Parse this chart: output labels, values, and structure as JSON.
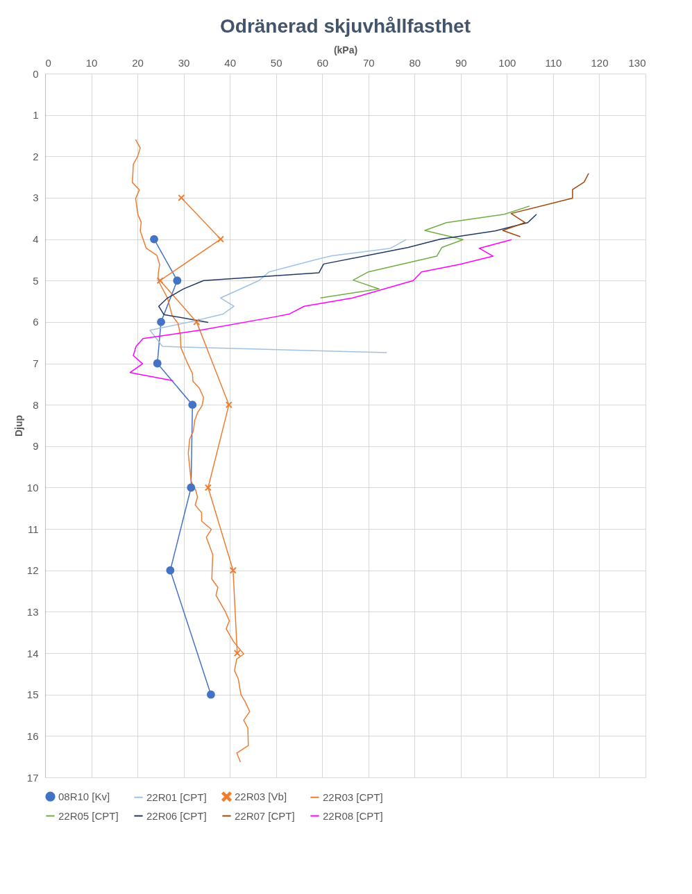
{
  "chart_data": {
    "type": "line",
    "title": "Odränerad skjuvhållfasthet",
    "xlabel": "(kPa)",
    "ylabel": "Djup",
    "xlim": [
      0,
      130
    ],
    "xticks": [
      0,
      10,
      20,
      30,
      40,
      50,
      60,
      70,
      80,
      90,
      100,
      110,
      120,
      130
    ],
    "ylim": [
      17,
      0
    ],
    "yticks": [
      0,
      1,
      2,
      3,
      4,
      5,
      6,
      7,
      8,
      9,
      10,
      11,
      12,
      13,
      14,
      15,
      16,
      17
    ],
    "grid": true,
    "legend": "bottom",
    "series": [
      {
        "name": "08R10 [Kv]",
        "color": "#4472c4",
        "marker": "circle",
        "x": [
          23.6,
          28.6,
          25.1,
          24.3,
          31.9,
          31.6,
          27.1,
          35.9
        ],
        "values": [
          4,
          5,
          6,
          7,
          8,
          10,
          12,
          15
        ]
      },
      {
        "name": "22R01 [CPT]",
        "color": "#9dc3e6",
        "marker": "none",
        "x": [
          78.2,
          74.8,
          62.1,
          59.1,
          48.5,
          46.3,
          38.0,
          40.9,
          38.5,
          32.6,
          22.7,
          25.4,
          66.6,
          74.0
        ],
        "values": [
          4.01,
          4.22,
          4.4,
          4.48,
          4.79,
          5.0,
          5.42,
          5.62,
          5.81,
          5.97,
          6.2,
          6.59,
          6.72,
          6.74
        ]
      },
      {
        "name": "22R03 [Vb]",
        "color": "#ed7d31",
        "marker": "cross",
        "x": [
          29.5,
          38.0,
          24.9,
          32.8,
          39.8,
          35.3,
          40.7,
          41.6
        ],
        "values": [
          3,
          4,
          5,
          6,
          8,
          10,
          12,
          14
        ]
      },
      {
        "name": "22R03 [CPT]",
        "color": "#ed7d31",
        "marker": "none",
        "x": [
          19.6,
          20.6,
          20.0,
          19.1,
          18.9,
          20.4,
          19.6,
          20.1,
          20.8,
          20.6,
          21.9,
          24.2,
          24.8,
          24.5,
          24.5,
          26.5,
          27.5,
          28.8,
          29.3,
          29.4,
          30.8,
          31.9,
          32.0,
          33.4,
          34.3,
          34.0,
          33.0,
          32.4,
          32.1,
          31.3,
          31.0,
          31.3,
          31.6,
          32.6,
          33.0,
          32.5,
          33.9,
          33.9,
          36.0,
          34.9,
          36.3,
          36.1,
          37.4,
          37.0,
          39.0,
          39.9,
          39.2,
          40.8,
          43.0,
          41.5,
          41.0,
          41.8,
          42.4,
          43.3,
          44.3,
          43.0,
          43.9,
          44.0,
          41.5,
          42.3
        ],
        "values": [
          1.59,
          1.8,
          2.01,
          2.19,
          2.63,
          2.81,
          3.02,
          3.41,
          3.59,
          3.8,
          4.22,
          4.39,
          4.61,
          4.83,
          5.0,
          5.42,
          5.84,
          6.04,
          6.32,
          6.62,
          6.99,
          7.24,
          7.43,
          7.6,
          7.82,
          8.02,
          8.19,
          8.38,
          8.63,
          8.83,
          9.17,
          9.5,
          9.84,
          10.06,
          10.23,
          10.42,
          10.61,
          10.81,
          11.01,
          11.2,
          11.62,
          12.21,
          12.41,
          12.6,
          12.99,
          13.22,
          13.41,
          13.72,
          14.02,
          14.14,
          14.42,
          14.61,
          15.0,
          15.17,
          15.41,
          15.62,
          15.81,
          16.23,
          16.41,
          16.63
        ]
      },
      {
        "name": "22R05 [CPT]",
        "color": "#70ad47",
        "marker": "none",
        "x": [
          104.9,
          99.4,
          86.9,
          82.2,
          90.5,
          85.9,
          84.8,
          70.0,
          66.7,
          72.3,
          59.6
        ],
        "values": [
          3.2,
          3.4,
          3.6,
          3.79,
          4.01,
          4.2,
          4.41,
          4.79,
          4.99,
          5.2,
          5.42
        ]
      },
      {
        "name": "22R06 [CPT]",
        "color": "#203864",
        "marker": "none",
        "x": [
          106.4,
          104.5,
          97.4,
          85.6,
          78.6,
          60.3,
          59.3,
          34.3,
          30.0,
          26.5,
          24.6,
          25.7,
          35.3
        ],
        "values": [
          3.4,
          3.6,
          3.8,
          4.0,
          4.2,
          4.6,
          4.81,
          5.0,
          5.2,
          5.42,
          5.62,
          5.82,
          6.01
        ]
      },
      {
        "name": "22R07 [CPT]",
        "color": "#9e480e",
        "marker": "none",
        "x": [
          117.7,
          116.7,
          114.2,
          114.2,
          100.9,
          103.9,
          99.1,
          102.9
        ],
        "values": [
          2.41,
          2.62,
          2.8,
          3.01,
          3.38,
          3.6,
          3.79,
          3.94
        ]
      },
      {
        "name": "22R08 [CPT]",
        "color": "#ff00ff",
        "marker": "none",
        "x": [
          101.0,
          94.0,
          97.0,
          89.7,
          81.5,
          79.7,
          66.6,
          56.1,
          52.8,
          50.0,
          34.0,
          21.2,
          19.7,
          19.1,
          21.1,
          18.4,
          27.7
        ],
        "values": [
          4.01,
          4.22,
          4.41,
          4.61,
          4.79,
          5.0,
          5.42,
          5.62,
          5.81,
          5.87,
          6.19,
          6.4,
          6.59,
          6.81,
          7.01,
          7.22,
          7.42
        ]
      }
    ]
  }
}
